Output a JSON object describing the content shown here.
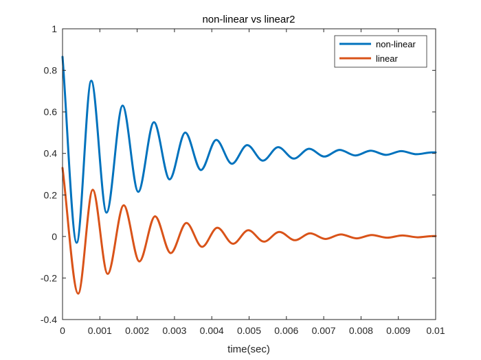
{
  "chart_data": {
    "type": "line",
    "title": "non-linear vs linear2",
    "xlabel": "time(sec)",
    "ylabel": "",
    "xlim": [
      0,
      0.01
    ],
    "ylim": [
      -0.4,
      1
    ],
    "xticks": [
      0,
      0.001,
      0.002,
      0.003,
      0.004,
      0.005,
      0.006,
      0.007,
      0.008,
      0.009,
      0.01
    ],
    "xtick_labels": [
      "0",
      "0.001",
      "0.002",
      "0.003",
      "0.004",
      "0.005",
      "0.006",
      "0.007",
      "0.008",
      "0.009",
      "0.01"
    ],
    "yticks": [
      -0.4,
      -0.2,
      0,
      0.2,
      0.4,
      0.6,
      0.8,
      1
    ],
    "ytick_labels": [
      "-0.4",
      "-0.2",
      "0",
      "0.2",
      "0.4",
      "0.6",
      "0.8",
      "1"
    ],
    "grid": false,
    "legend_position": "top-right",
    "series": [
      {
        "name": "non-linear",
        "color": "#0072BD",
        "x": [
          0,
          0.00038,
          0.00077,
          0.00118,
          0.00161,
          0.00203,
          0.00245,
          0.00287,
          0.00329,
          0.00371,
          0.00412,
          0.00454,
          0.00495,
          0.00537,
          0.00578,
          0.0062,
          0.00661,
          0.00702,
          0.00743,
          0.00785,
          0.00826,
          0.00867,
          0.00908,
          0.00949,
          0.0099,
          0.01
        ],
        "y": [
          0.865,
          -0.03,
          0.75,
          0.115,
          0.63,
          0.215,
          0.55,
          0.275,
          0.5,
          0.32,
          0.465,
          0.35,
          0.44,
          0.365,
          0.43,
          0.375,
          0.422,
          0.385,
          0.417,
          0.39,
          0.413,
          0.393,
          0.411,
          0.396,
          0.405,
          0.405
        ]
      },
      {
        "name": "linear",
        "color": "#D95319",
        "x": [
          0,
          0.00042,
          0.00081,
          0.00121,
          0.00164,
          0.00206,
          0.00248,
          0.0029,
          0.00332,
          0.00374,
          0.00415,
          0.00457,
          0.00498,
          0.0054,
          0.00581,
          0.00623,
          0.00664,
          0.00705,
          0.00746,
          0.00788,
          0.00829,
          0.0087,
          0.00911,
          0.00952,
          0.00993,
          0.01
        ],
        "y": [
          0.33,
          -0.275,
          0.225,
          -0.18,
          0.15,
          -0.12,
          0.097,
          -0.08,
          0.065,
          -0.05,
          0.042,
          -0.035,
          0.03,
          -0.025,
          0.022,
          -0.018,
          0.015,
          -0.012,
          0.01,
          -0.009,
          0.007,
          -0.006,
          0.005,
          -0.004,
          0.002,
          0.002
        ]
      }
    ]
  }
}
